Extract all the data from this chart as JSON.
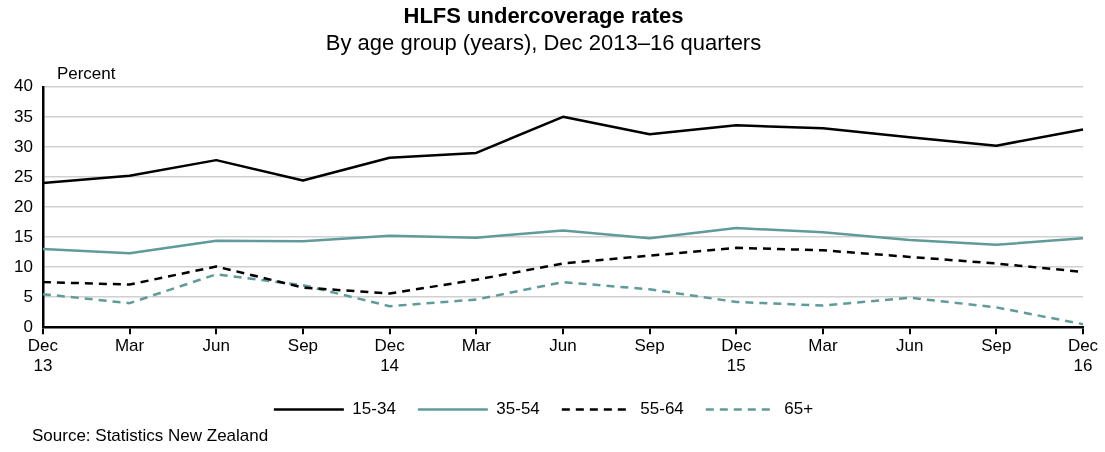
{
  "chart_data": {
    "type": "line",
    "title": "HLFS undercoverage rates",
    "subtitle": "By age group (years), Dec 2013–16 quarters",
    "ylabel": "Percent",
    "categories": [
      "Dec\n13",
      "Mar",
      "Jun",
      "Sep",
      "Dec\n14",
      "Mar",
      "Jun",
      "Sep",
      "Dec\n15",
      "Mar",
      "Jun",
      "Sep",
      "Dec\n16"
    ],
    "series": [
      {
        "name": "15-34",
        "color": "#000000",
        "line_style": "solid",
        "values": [
          24,
          25.2,
          27.8,
          24.4,
          28.2,
          29,
          35,
          32.1,
          33.6,
          33.1,
          31.6,
          30.2,
          32.9
        ]
      },
      {
        "name": "35-54",
        "color": "#5f9b98",
        "line_style": "solid",
        "values": [
          13,
          12.3,
          14.4,
          14.3,
          15.2,
          14.9,
          16.1,
          14.8,
          16.5,
          15.8,
          14.5,
          13.7,
          14.8
        ]
      },
      {
        "name": "55-64",
        "color": "#000000",
        "line_style": "dashed",
        "values": [
          7.5,
          7.1,
          10.1,
          6.6,
          5.6,
          7.9,
          10.6,
          11.9,
          13.2,
          12.8,
          11.7,
          10.6,
          9.2
        ]
      },
      {
        "name": "65+",
        "color": "#5f9b98",
        "line_style": "dashed",
        "values": [
          5.5,
          4.0,
          8.8,
          7.0,
          3.5,
          4.6,
          7.5,
          6.3,
          4.2,
          3.6,
          4.9,
          3.3,
          0.5
        ]
      }
    ],
    "ylim": [
      0,
      40
    ],
    "yticks": [
      0,
      5,
      10,
      15,
      20,
      25,
      30,
      35,
      40
    ],
    "grid": "y",
    "legend": "bottom",
    "marker": "none",
    "annotations": [
      "Source: Statistics New Zealand"
    ]
  }
}
